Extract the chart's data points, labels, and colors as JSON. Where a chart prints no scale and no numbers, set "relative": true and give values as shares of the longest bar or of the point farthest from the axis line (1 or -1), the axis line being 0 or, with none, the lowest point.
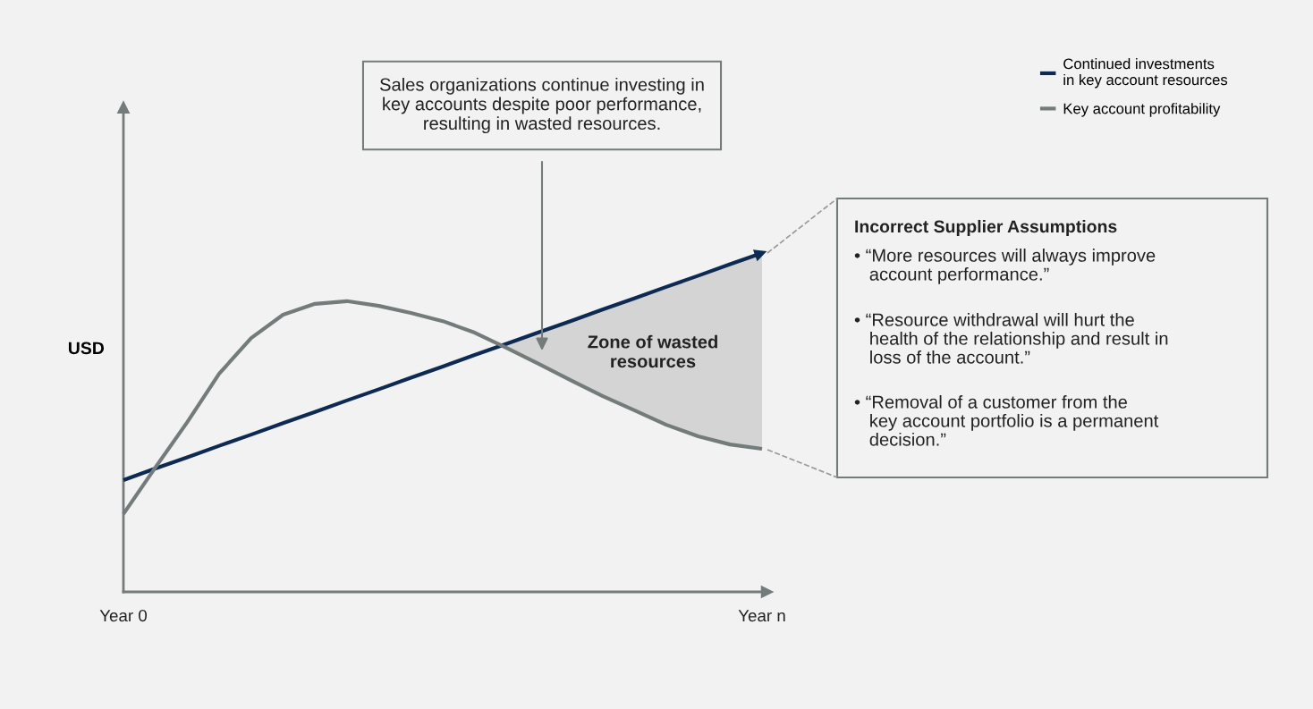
{
  "chart_data": {
    "type": "line",
    "relative": true,
    "ylabel": "USD",
    "categories": [
      "Year 0",
      null,
      null,
      null,
      null,
      null,
      null,
      null,
      null,
      null,
      null,
      null,
      null,
      null,
      null,
      null,
      null,
      null,
      null,
      null,
      "Year n"
    ],
    "series": [
      {
        "name": "Continued investments\nin key account resources",
        "color": "#0d2a52",
        "values": [
          0.33,
          0.364,
          0.397,
          0.431,
          0.464,
          0.498,
          0.531,
          0.565,
          0.598,
          0.632,
          0.665,
          0.699,
          0.732,
          0.766,
          0.799,
          0.833,
          0.866,
          0.9,
          0.933,
          0.967,
          1.0
        ]
      },
      {
        "name": "Key account profitability",
        "color": "#737b7b",
        "values": [
          0.23,
          0.367,
          0.501,
          0.644,
          0.749,
          0.818,
          0.85,
          0.858,
          0.844,
          0.823,
          0.799,
          0.765,
          0.72,
          0.673,
          0.625,
          0.578,
          0.536,
          0.493,
          0.459,
          0.435,
          0.422
        ],
        "lower": [
          null,
          null,
          null,
          null,
          null,
          null,
          null,
          null,
          null,
          null,
          null,
          null,
          0.72,
          0.673,
          0.625,
          0.578,
          0.536,
          0.493,
          0.459,
          0.435,
          0.422
        ],
        "upper": [
          null,
          null,
          null,
          null,
          null,
          null,
          null,
          null,
          null,
          null,
          null,
          null,
          0.732,
          0.766,
          0.799,
          0.833,
          0.866,
          0.9,
          0.933,
          0.967,
          1.0
        ]
      }
    ],
    "legend": "top right",
    "grid": false,
    "marker": "none",
    "line_style": "solid",
    "annotations": [
      "Sales organizations continue investing in\nkey accounts despite poor performance,\nresulting in wasted resources.",
      "Zone of wasted\nresources",
      "Incorrect Supplier Assumptions",
      "• “More resources will always improve\n   account performance.”",
      "• “Resource withdrawal will hurt the\n   health of the relationship and result in\n   loss of the account.”",
      "• “Removal of a customer from the\n   key account portfolio is a permanent\n   decision.”"
    ]
  }
}
